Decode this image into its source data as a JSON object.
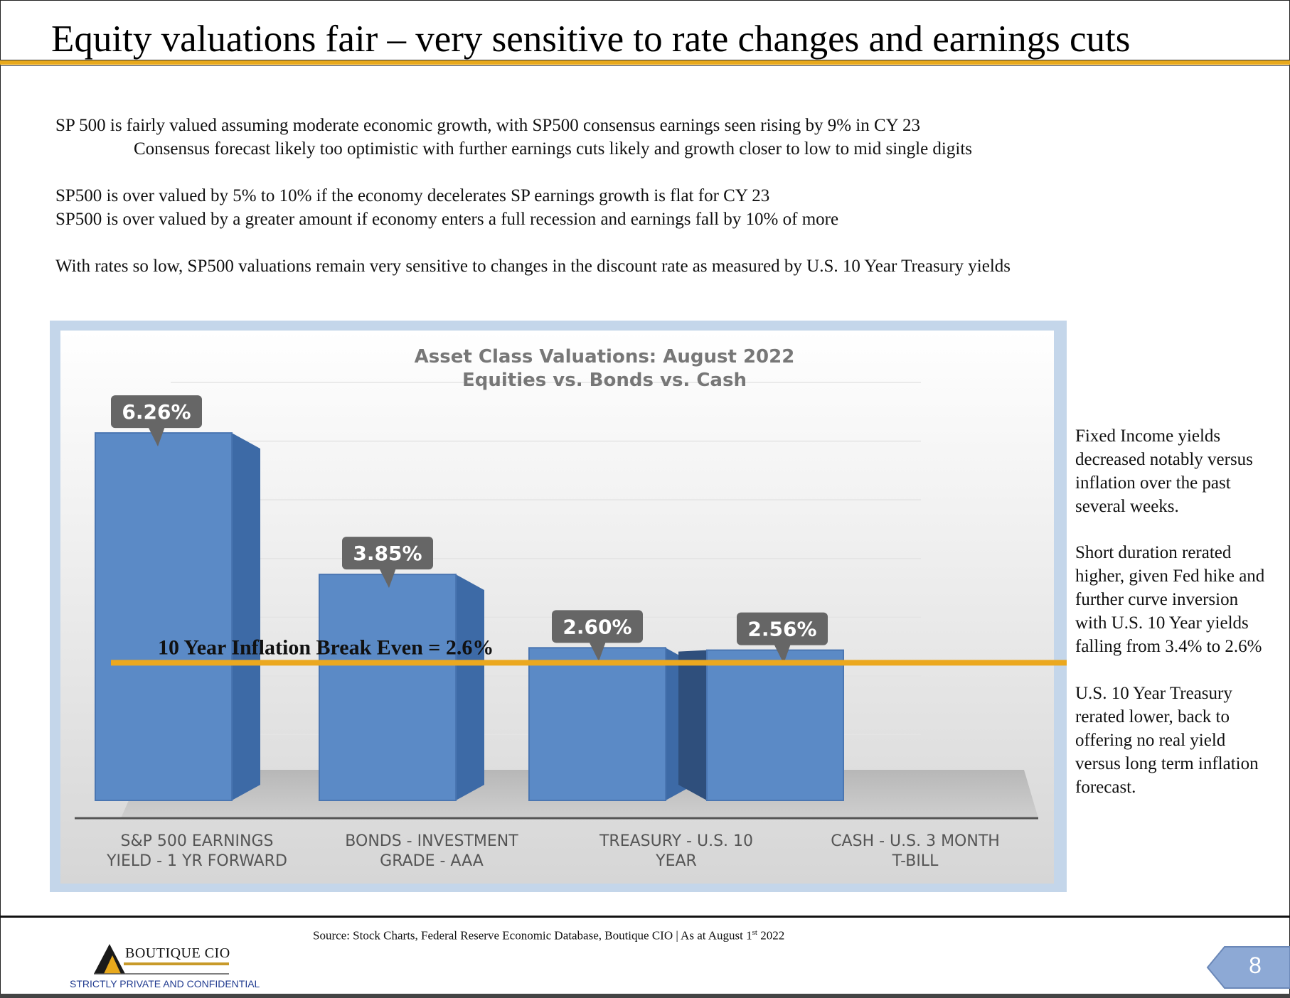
{
  "slide": {
    "title": "Equity valuations fair – very sensitive to rate changes and earnings cuts",
    "page_number": "8"
  },
  "body": {
    "line1": "SP 500 is fairly valued assuming moderate economic growth, with SP500 consensus earnings seen rising by 9% in CY 23",
    "line2": "Consensus forecast likely too optimistic with further earnings cuts likely and growth closer to low to mid single digits",
    "line3": "SP500 is over valued by 5% to 10% if the economy decelerates SP earnings growth is flat for CY 23",
    "line4": "SP500 is over valued by a greater amount if economy enters a full recession and earnings fall by 10% of more",
    "line5": "With rates so low, SP500 valuations remain very sensitive to changes in the discount rate as measured by U.S. 10 Year Treasury yields"
  },
  "sidebar": {
    "p1": [
      "Fixed Income yields",
      "decreased notably versus",
      "inflation over the past",
      "several weeks."
    ],
    "p2": [
      "Short duration rerated",
      "higher, given Fed hike and",
      "further curve inversion",
      "with U.S. 10 Year yields",
      "falling from 3.4% to 2.6%"
    ],
    "p3": [
      "U.S. 10 Year Treasury",
      "rerated lower, back to",
      "offering no real yield",
      "versus long term inflation",
      "forecast."
    ]
  },
  "chart_data": {
    "type": "bar",
    "title": "Asset Class Valuations: August 2022",
    "subtitle": "Equities vs. Bonds vs. Cash",
    "categories": [
      [
        "S&P 500 EARNINGS",
        "YIELD - 1 YR FORWARD"
      ],
      [
        "BONDS - INVESTMENT",
        "GRADE - AAA"
      ],
      [
        "TREASURY - U.S. 10",
        "YEAR"
      ],
      [
        "CASH -  U.S. 3 MONTH",
        "T-BILL"
      ]
    ],
    "values": [
      6.26,
      3.85,
      2.6,
      2.56
    ],
    "data_labels": [
      "6.26%",
      "3.85%",
      "2.60%",
      "2.56%"
    ],
    "reference_line": {
      "value": 2.6,
      "label": "10 Year Inflation Break Even = 2.6%",
      "color": "#eba81f"
    },
    "bar_color": "#5b8ac6",
    "ylim": [
      0,
      7
    ],
    "grid": true
  },
  "footer": {
    "source": "Source: Stock Charts, Federal Reserve Economic Database, Boutique CIO | As at August 1",
    "source_sup": "st",
    "source_tail": " 2022",
    "brand": "BOUTIQUE CIO",
    "confidential": "STRICTLY PRIVATE AND CONFIDENTIAL"
  }
}
